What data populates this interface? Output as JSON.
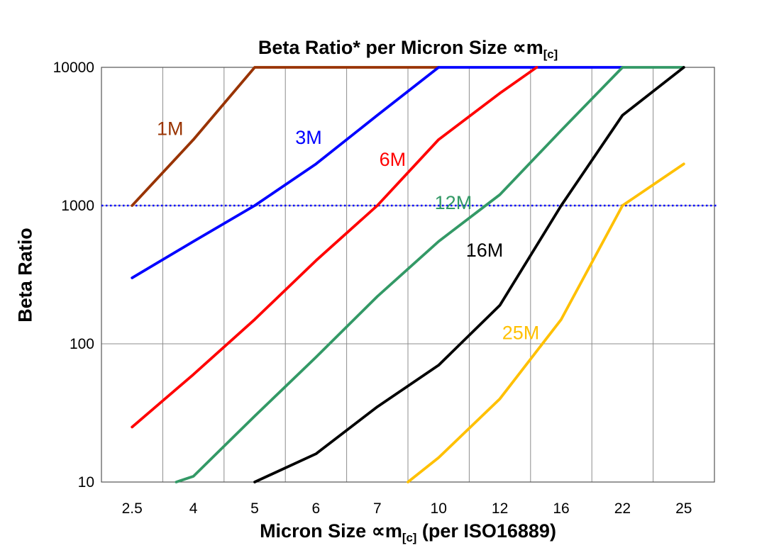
{
  "header": {
    "title_main": "Beta Ratio* per Micron Size ∝m",
    "title_sub": "[c]"
  },
  "axes": {
    "y_label": "Beta Ratio",
    "x_label_main": "Micron Size ∝m",
    "x_label_sub": "[c]",
    "x_label_suffix": " (per ISO16889)"
  },
  "chart_data": {
    "type": "line",
    "title": "Beta Ratio* per Micron Size ∝m[c]",
    "xlabel": "Micron Size ∝m[c] (per ISO16889)",
    "ylabel": "Beta Ratio",
    "categories": [
      "2.5",
      "4",
      "5",
      "6",
      "7",
      "10",
      "12",
      "16",
      "22",
      "25"
    ],
    "y_scale": "log",
    "ylim": [
      10,
      10000
    ],
    "y_ticks": [
      10,
      100,
      1000,
      10000
    ],
    "grid": true,
    "grid_color": "#8c8c8c",
    "border_color": "#555555",
    "reference_line": {
      "value": 1000,
      "color": "#0000ff",
      "style": "dotted"
    },
    "series": [
      {
        "name": "1M",
        "color": "#993300",
        "label_at": [
          0.62,
          3600
        ],
        "points": [
          [
            0,
            1000
          ],
          [
            1,
            3000
          ],
          [
            2,
            10000
          ],
          [
            5,
            10000
          ]
        ]
      },
      {
        "name": "3M",
        "color": "#0000ff",
        "label_at": [
          2.88,
          3100
        ],
        "points": [
          [
            0,
            300
          ],
          [
            1,
            550
          ],
          [
            2,
            1000
          ],
          [
            3,
            2000
          ],
          [
            4,
            4500
          ],
          [
            5,
            10000
          ],
          [
            8,
            10000
          ]
        ]
      },
      {
        "name": "6M",
        "color": "#ff0000",
        "label_at": [
          4.25,
          2150
        ],
        "points": [
          [
            0,
            25
          ],
          [
            1,
            60
          ],
          [
            2,
            150
          ],
          [
            3,
            400
          ],
          [
            4,
            1000
          ],
          [
            5,
            3000
          ],
          [
            6,
            6500
          ],
          [
            6.6,
            10000
          ]
        ]
      },
      {
        "name": "12M",
        "color": "#339966",
        "label_at": [
          5.24,
          1050
        ],
        "points": [
          [
            0.72,
            10
          ],
          [
            1,
            11
          ],
          [
            2,
            30
          ],
          [
            3,
            80
          ],
          [
            4,
            220
          ],
          [
            5,
            550
          ],
          [
            6,
            1200
          ],
          [
            7,
            3500
          ],
          [
            8,
            10000
          ],
          [
            9,
            10000
          ]
        ]
      },
      {
        "name": "16M",
        "color": "#000000",
        "label_at": [
          5.75,
          475
        ],
        "points": [
          [
            2,
            10
          ],
          [
            3,
            16
          ],
          [
            4,
            35
          ],
          [
            5,
            70
          ],
          [
            6,
            190
          ],
          [
            7,
            1000
          ],
          [
            8,
            4500
          ],
          [
            9,
            10000
          ]
        ]
      },
      {
        "name": "25M",
        "color": "#ffc000",
        "label_at": [
          6.34,
          120
        ],
        "points": [
          [
            4.5,
            10
          ],
          [
            5,
            15
          ],
          [
            6,
            40
          ],
          [
            7,
            150
          ],
          [
            8,
            1000
          ],
          [
            9,
            2000
          ]
        ]
      }
    ]
  }
}
